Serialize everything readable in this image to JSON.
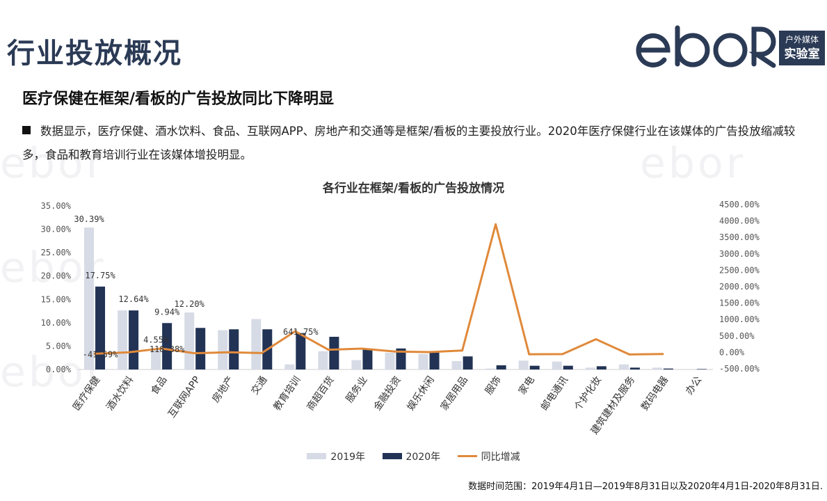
{
  "page": {
    "title": "行业投放概况",
    "subtitle": "医疗保健在框架/看板的广告投放同比下降明显",
    "bullet": "数据显示，医疗保健、酒水饮料、食品、互联网APP、房地产和交通等是框架/看板的主要投放行业。2020年医疗保健行业在该媒体的广告投放缩减较多，食品和教育培训行业在该媒体增投明显。",
    "footnote": "数据时间范围：2019年4月1日—2019年8月31日以及2020年4月1日-2020年8月31日."
  },
  "logo": {
    "wordmark": "ebor",
    "badge_line1": "户外媒体",
    "badge_line2": "实验室",
    "color": "#2b3a55"
  },
  "chart_data": {
    "type": "bar",
    "title": "各行业在框架/看板的广告投放情况",
    "categories": [
      "医疗保健",
      "酒水饮料",
      "食品",
      "互联网APP",
      "房地产",
      "交通",
      "教育培训",
      "商超百货",
      "服务业",
      "金融投资",
      "娱乐休闲",
      "家居用品",
      "服饰",
      "家电",
      "邮电通讯",
      "个护化妆",
      "建筑建材及服务",
      "数码电器",
      "办公"
    ],
    "series": [
      {
        "name": "2019年",
        "type": "bar",
        "axis": "left",
        "color": "#d6dbe6",
        "values": [
          30.39,
          12.64,
          4.55,
          12.2,
          8.4,
          10.8,
          1.1,
          3.9,
          2.0,
          3.6,
          3.3,
          1.8,
          0.2,
          1.9,
          1.7,
          0.4,
          1.1,
          0.4,
          0.0
        ]
      },
      {
        "name": "2020年",
        "type": "bar",
        "axis": "left",
        "color": "#223355",
        "values": [
          17.75,
          12.64,
          9.94,
          8.9,
          8.6,
          8.6,
          7.8,
          7.0,
          4.3,
          4.5,
          3.6,
          2.8,
          0.9,
          0.8,
          0.8,
          0.7,
          0.4,
          0.2,
          0.1
        ]
      },
      {
        "name": "同比增减",
        "type": "line",
        "axis": "right",
        "color": "#e0893a",
        "values": [
          -41.59,
          0.0,
          118.38,
          -27.0,
          2.4,
          -20.4,
          641.75,
          79.5,
          115.0,
          25.0,
          9.1,
          55.6,
          3900,
          -57.9,
          -52.9,
          400,
          -63.6,
          -50.0,
          null
        ]
      }
    ],
    "data_labels": [
      {
        "series": 0,
        "index": 0,
        "text": "30.39%"
      },
      {
        "series": 1,
        "index": 0,
        "text": "17.75%"
      },
      {
        "series": 2,
        "index": 0,
        "text": "-41.59%"
      },
      {
        "series": 1,
        "index": 1,
        "text": "12.64%"
      },
      {
        "series": 0,
        "index": 2,
        "text": "4.55%"
      },
      {
        "series": 1,
        "index": 2,
        "text": "9.94%"
      },
      {
        "series": 2,
        "index": 2,
        "text": "118.38%"
      },
      {
        "series": 0,
        "index": 3,
        "text": "12.20%"
      },
      {
        "series": 2,
        "index": 6,
        "text": "641.75%"
      }
    ],
    "y_left": {
      "min": 0,
      "max": 35,
      "step": 5,
      "ticks": [
        "0.00%",
        "5.00%",
        "10.00%",
        "15.00%",
        "20.00%",
        "25.00%",
        "30.00%",
        "35.00%"
      ]
    },
    "y_right": {
      "min": -500,
      "max": 4500,
      "step": 500,
      "ticks": [
        "-500.00%",
        "0.00%",
        "500.00%",
        "1000.00%",
        "1500.00%",
        "2000.00%",
        "2500.00%",
        "3000.00%",
        "3500.00%",
        "4000.00%",
        "4500.00%"
      ]
    },
    "grid": false,
    "legend_position": "bottom"
  }
}
